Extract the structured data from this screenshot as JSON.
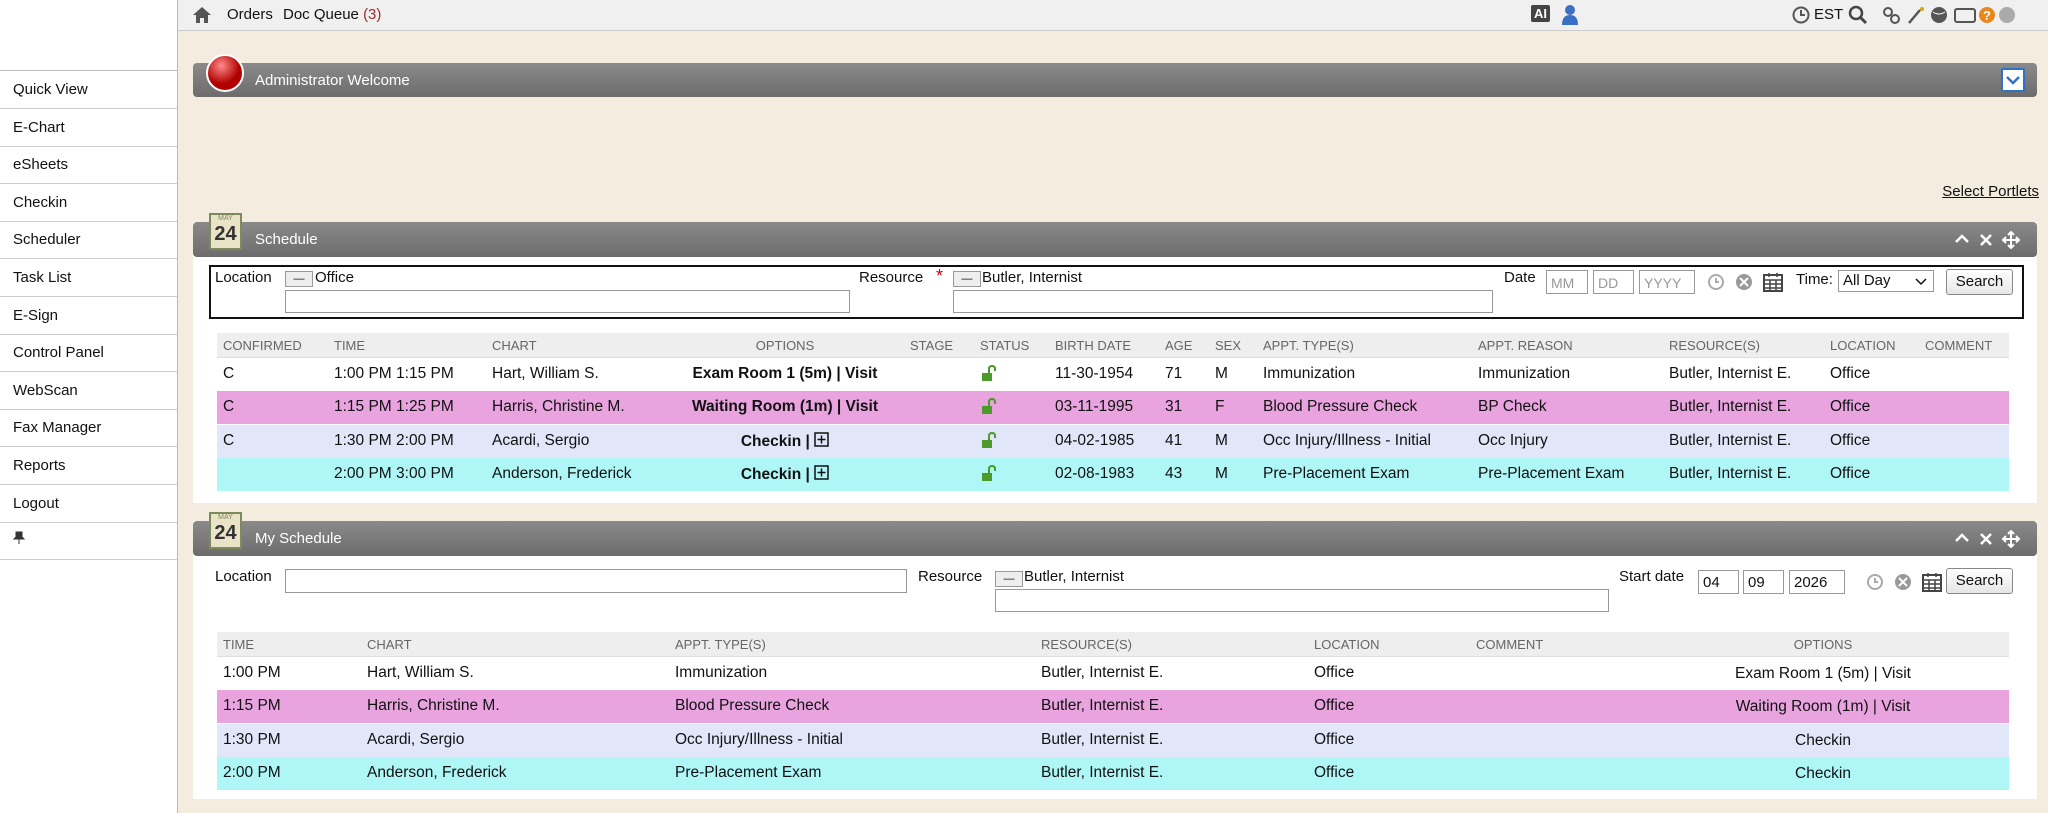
{
  "topbar": {
    "links": [
      "Orders",
      "Doc Queue"
    ],
    "doc_queue_count": "(3)",
    "ai_badge": "AI",
    "timezone": "EST"
  },
  "sidebar": {
    "items": [
      "Quick View",
      "E-Chart",
      "eSheets",
      "Checkin",
      "Scheduler",
      "Task List",
      "E-Sign",
      "Control Panel",
      "WebScan",
      "Fax Manager",
      "Reports",
      "Logout"
    ]
  },
  "welcome": {
    "title": "Administrator Welcome"
  },
  "select_portlets": "Select Portlets",
  "schedule": {
    "title": "Schedule",
    "calendar_month": "MAY",
    "calendar_day": "24",
    "filters": {
      "location_label": "Location",
      "location_value": "Office",
      "resource_label": "Resource",
      "required_mark": "*",
      "resource_value": "Butler, Internist",
      "date_label": "Date",
      "month_placeholder": "MM",
      "day_placeholder": "DD",
      "year_placeholder": "YYYY",
      "time_label": "Time:",
      "time_value": "All Day",
      "search": "Search"
    },
    "columns": [
      "CONFIRMED",
      "TIME",
      "CHART",
      "OPTIONS",
      "STAGE",
      "STATUS",
      "BIRTH DATE",
      "AGE",
      "SEX",
      "APPT. TYPE(S)",
      "APPT. REASON",
      "RESOURCE(S)",
      "LOCATION",
      "COMMENT"
    ],
    "rows": [
      [
        "C",
        "1:00 PM 1:15 PM",
        "Hart, William S.",
        "Exam Room 1 (5m) | Visit",
        "",
        "",
        "11-30-1954",
        "71",
        "M",
        "Immunization",
        "Immunization",
        "Butler, Internist E.",
        "Office",
        ""
      ],
      [
        "C",
        "1:15 PM 1:25 PM",
        "Harris, Christine M.",
        "Waiting Room (1m) | Visit",
        "",
        "",
        "03-11-1995",
        "31",
        "F",
        "Blood Pressure Check",
        "BP Check",
        "Butler, Internist E.",
        "Office",
        ""
      ],
      [
        "C",
        "1:30 PM 2:00 PM",
        "Acardi, Sergio",
        "Checkin |",
        "",
        "",
        "04-02-1985",
        "41",
        "M",
        "Occ Injury/Illness - Initial",
        "Occ Injury",
        "Butler, Internist E.",
        "Office",
        ""
      ],
      [
        "",
        "2:00 PM 3:00 PM",
        "Anderson, Frederick",
        "Checkin |",
        "",
        "",
        "02-08-1983",
        "43",
        "M",
        "Pre-Placement Exam",
        "Pre-Placement Exam",
        "Butler, Internist E.",
        "Office",
        ""
      ]
    ]
  },
  "my_schedule": {
    "title": "My Schedule",
    "calendar_month": "MAY",
    "calendar_day": "24",
    "filters": {
      "location_label": "Location",
      "resource_label": "Resource",
      "resource_value": "Butler, Internist",
      "start_date_label": "Start date",
      "month": "04",
      "day": "09",
      "year": "2026",
      "search": "Search"
    },
    "columns": [
      "TIME",
      "CHART",
      "APPT. TYPE(S)",
      "RESOURCE(S)",
      "LOCATION",
      "COMMENT",
      "OPTIONS"
    ],
    "rows": [
      [
        "1:00 PM",
        "Hart, William S.",
        "Immunization",
        "Butler, Internist E.",
        "Office",
        "",
        "Exam Room 1 (5m) | Visit"
      ],
      [
        "1:15 PM",
        "Harris, Christine M.",
        "Blood Pressure Check",
        "Butler, Internist E.",
        "Office",
        "",
        "Waiting Room (1m) | Visit"
      ],
      [
        "1:30 PM",
        "Acardi, Sergio",
        "Occ Injury/Illness - Initial",
        "Butler, Internist E.",
        "Office",
        "",
        "Checkin"
      ],
      [
        "2:00 PM",
        "Anderson, Frederick",
        "Pre-Placement Exam",
        "Butler, Internist E.",
        "Office",
        "",
        "Checkin"
      ]
    ]
  }
}
